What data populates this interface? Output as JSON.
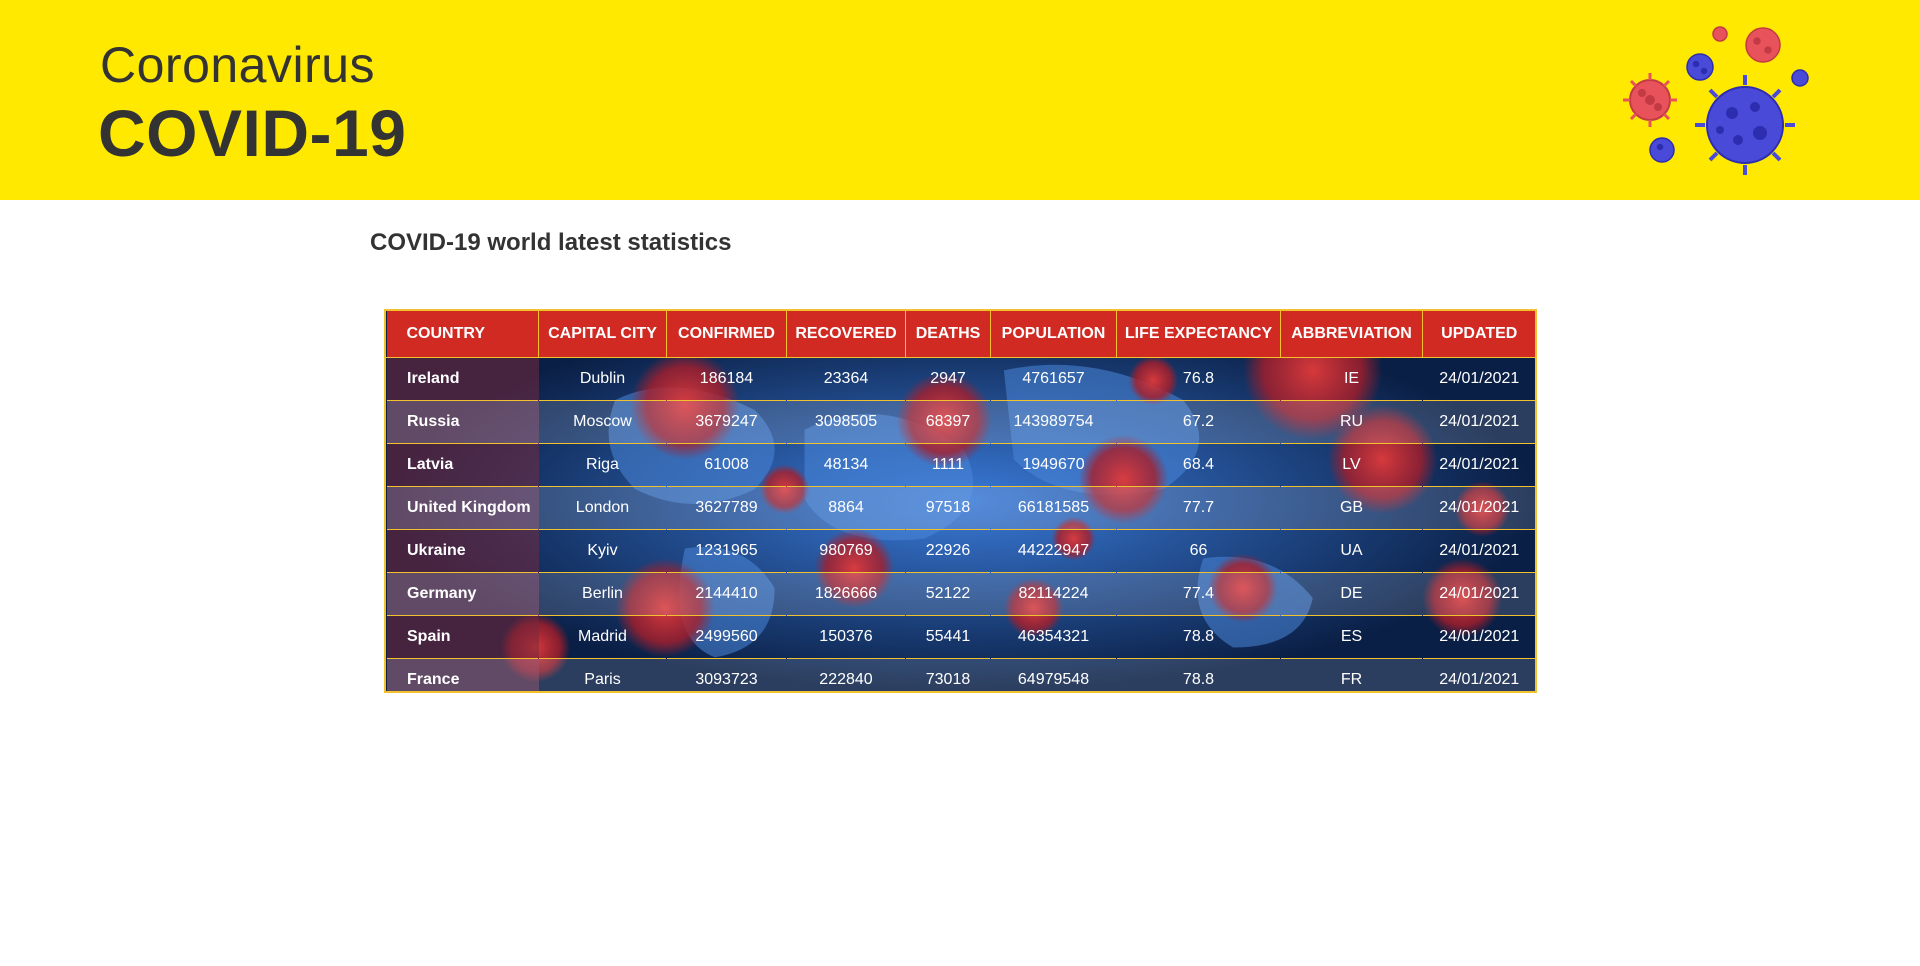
{
  "header": {
    "subtitle": "Coronavirus",
    "title": "COVID-19",
    "art_icon": "virus-cluster-icon",
    "background_color": "#ffe900"
  },
  "section_title": "COVID-19 world latest statistics",
  "table": {
    "header_color": "#d12a22",
    "border_color": "#f2c12e",
    "columns": [
      "COUNTRY",
      "CAPITAL CITY",
      "CONFIRMED",
      "RECOVERED",
      "DEATHS",
      "POPULATION",
      "LIFE EXPECTANCY",
      "ABBREVIATION",
      "UPDATED"
    ],
    "rows": [
      [
        "Ireland",
        "Dublin",
        "186184",
        "23364",
        "2947",
        "4761657",
        "76.8",
        "IE",
        "24/01/2021"
      ],
      [
        "Russia",
        "Moscow",
        "3679247",
        "3098505",
        "68397",
        "143989754",
        "67.2",
        "RU",
        "24/01/2021"
      ],
      [
        "Latvia",
        "Riga",
        "61008",
        "48134",
        "1111",
        "1949670",
        "68.4",
        "LV",
        "24/01/2021"
      ],
      [
        "United Kingdom",
        "London",
        "3627789",
        "8864",
        "97518",
        "66181585",
        "77.7",
        "GB",
        "24/01/2021"
      ],
      [
        "Ukraine",
        "Kyiv",
        "1231965",
        "980769",
        "22926",
        "44222947",
        "66",
        "UA",
        "24/01/2021"
      ],
      [
        "Germany",
        "Berlin",
        "2144410",
        "1826666",
        "52122",
        "82114224",
        "77.4",
        "DE",
        "24/01/2021"
      ],
      [
        "Spain",
        "Madrid",
        "2499560",
        "150376",
        "55441",
        "46354321",
        "78.8",
        "ES",
        "24/01/2021"
      ],
      [
        "France",
        "Paris",
        "3093723",
        "222840",
        "73018",
        "64979548",
        "78.8",
        "FR",
        "24/01/2021"
      ]
    ]
  }
}
